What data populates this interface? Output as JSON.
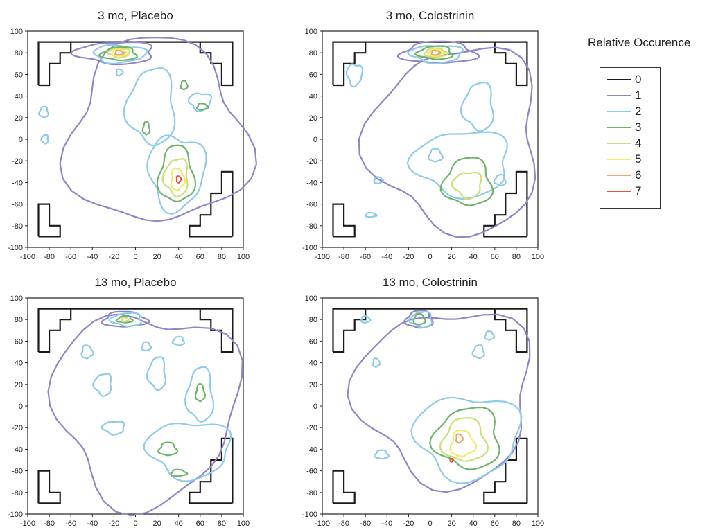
{
  "legend": {
    "title": "Relative Occurence",
    "levels": [
      {
        "label": "0",
        "color": "#1a1a1a"
      },
      {
        "label": "1",
        "color": "#8e86c8"
      },
      {
        "label": "2",
        "color": "#8ecbe8"
      },
      {
        "label": "3",
        "color": "#6fb46a"
      },
      {
        "label": "4",
        "color": "#c9e07a"
      },
      {
        "label": "5",
        "color": "#f1ea6a"
      },
      {
        "label": "6",
        "color": "#f0a56e"
      },
      {
        "label": "7",
        "color": "#e5573a"
      }
    ]
  },
  "chart_data": [
    {
      "type": "contour",
      "title": "3 mo, Placebo",
      "xlim": [
        -100,
        100
      ],
      "ylim": [
        -100,
        100
      ],
      "xticks": [
        "-100",
        "-80",
        "-60",
        "-40",
        "-20",
        "0",
        "20",
        "40",
        "60",
        "80",
        "100"
      ],
      "yticks": [
        "100",
        "80",
        "60",
        "40",
        "20",
        "0",
        "-20",
        "-40",
        "-60",
        "-80",
        "-100"
      ],
      "peaks": [
        {
          "x": -15,
          "y": 80,
          "max_level": 7
        },
        {
          "x": 40,
          "y": -37,
          "max_level": 7
        }
      ]
    },
    {
      "type": "contour",
      "title": "3 mo, Colostrinin",
      "xlim": [
        -100,
        100
      ],
      "ylim": [
        -100,
        100
      ],
      "xticks": [
        "-100",
        "-80",
        "-60",
        "-40",
        "-20",
        "0",
        "20",
        "40",
        "60",
        "80",
        "100"
      ],
      "yticks": [
        "100",
        "80",
        "60",
        "40",
        "20",
        "0",
        "-20",
        "-40",
        "-60",
        "-80",
        "-100"
      ],
      "peaks": [
        {
          "x": 5,
          "y": 80,
          "max_level": 7
        },
        {
          "x": 30,
          "y": -40,
          "max_level": 4
        }
      ]
    },
    {
      "type": "contour",
      "title": "13 mo, Placebo",
      "xlim": [
        -100,
        100
      ],
      "ylim": [
        -100,
        100
      ],
      "xticks": [
        "-100",
        "-80",
        "-60",
        "-40",
        "-20",
        "0",
        "20",
        "40",
        "60",
        "80",
        "100"
      ],
      "yticks": [
        "100",
        "80",
        "60",
        "40",
        "20",
        "0",
        "-20",
        "-40",
        "-60",
        "-80",
        "-100"
      ],
      "peaks": [
        {
          "x": -10,
          "y": 80,
          "max_level": 4
        },
        {
          "x": 60,
          "y": 10,
          "max_level": 3
        }
      ]
    },
    {
      "type": "contour",
      "title": "13 mo, Colostrinin",
      "xlim": [
        -100,
        100
      ],
      "ylim": [
        -100,
        100
      ],
      "xticks": [
        "-100",
        "-80",
        "-60",
        "-40",
        "-20",
        "0",
        "20",
        "40",
        "60",
        "80",
        "100"
      ],
      "yticks": [
        "100",
        "80",
        "60",
        "40",
        "20",
        "0",
        "-20",
        "-40",
        "-60",
        "-80",
        "-100"
      ],
      "peaks": [
        {
          "x": -10,
          "y": 80,
          "max_level": 3
        },
        {
          "x": 30,
          "y": -30,
          "max_level": 7
        }
      ]
    }
  ]
}
